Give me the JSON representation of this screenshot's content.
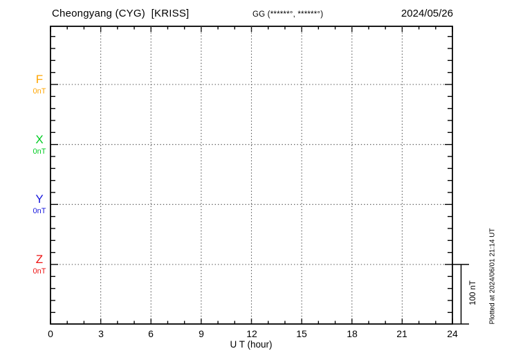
{
  "chart_data": {
    "type": "line",
    "title": "Cheongyang (CYG)  [KRISS]",
    "subtitle_coords": "GG (******°, ******°)",
    "date": "2024/05/26",
    "xlabel": "U T (hour)",
    "xlim": [
      0,
      24
    ],
    "x_ticks": [
      0,
      3,
      6,
      9,
      12,
      15,
      18,
      21,
      24
    ],
    "x_minor_tick_interval_hours": 1,
    "grid": "dotted",
    "series": [
      {
        "name": "F",
        "baseline_label": "0nT",
        "color": "#FFA500",
        "values": []
      },
      {
        "name": "X",
        "baseline_label": "0nT",
        "color": "#00CC22",
        "values": []
      },
      {
        "name": "Y",
        "baseline_label": "0nT",
        "color": "#1515DD",
        "values": []
      },
      {
        "name": "Z",
        "baseline_label": "0nT",
        "color": "#EE1111",
        "values": []
      }
    ],
    "y_minor_division_nT": 20,
    "scale_bar_label": "100 nT",
    "footnote": "Plotted at 2024/06/01 21:14 UT"
  }
}
